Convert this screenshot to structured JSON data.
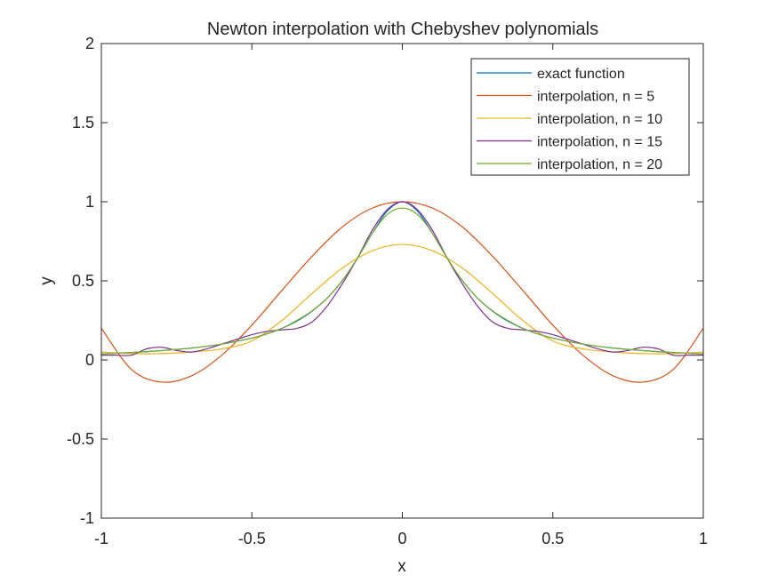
{
  "chart_data": {
    "type": "line",
    "title": "Newton interpolation with Chebyshev polynomials",
    "xlabel": "x",
    "ylabel": "y",
    "xlim": [
      -1,
      1
    ],
    "ylim": [
      -1,
      2
    ],
    "xticks": [
      -1,
      -0.5,
      0,
      0.5,
      1
    ],
    "xtick_labels": [
      "-1",
      "-0.5",
      "0",
      "0.5",
      "1"
    ],
    "yticks": [
      -1,
      -0.5,
      0,
      0.5,
      1,
      1.5,
      2
    ],
    "ytick_labels": [
      "-1",
      "-0.5",
      "0",
      "0.5",
      "1",
      "1.5",
      "2"
    ],
    "grid": false,
    "legend_position": "top-right",
    "series": [
      {
        "name": "exact function",
        "color": "#0072BD",
        "x": [
          0,
          0.05,
          0.1,
          0.15,
          0.2,
          0.25,
          0.3,
          0.35,
          0.4,
          0.45,
          0.5,
          0.6,
          0.7,
          0.8,
          0.9,
          1.0
        ],
        "y": [
          1.0,
          0.941,
          0.8,
          0.64,
          0.5,
          0.39,
          0.308,
          0.246,
          0.2,
          0.165,
          0.138,
          0.1,
          0.075,
          0.059,
          0.047,
          0.038
        ]
      },
      {
        "name": "interpolation, n = 5",
        "color": "#D95319",
        "x": [
          0,
          0.1,
          0.2,
          0.3,
          0.4,
          0.5,
          0.6,
          0.7,
          0.8,
          0.9,
          1.0
        ],
        "y": [
          1.0,
          0.96,
          0.84,
          0.655,
          0.44,
          0.22,
          0.03,
          -0.1,
          -0.14,
          -0.06,
          0.2
        ]
      },
      {
        "name": "interpolation, n = 10",
        "color": "#EDB120",
        "x": [
          0,
          0.1,
          0.2,
          0.3,
          0.4,
          0.5,
          0.6,
          0.7,
          0.8,
          0.9,
          1.0
        ],
        "y": [
          0.73,
          0.69,
          0.58,
          0.42,
          0.25,
          0.12,
          0.07,
          0.05,
          0.04,
          0.04,
          0.05
        ]
      },
      {
        "name": "interpolation, n = 15",
        "color": "#7E2F8E",
        "x": [
          0,
          0.05,
          0.1,
          0.15,
          0.2,
          0.25,
          0.3,
          0.35,
          0.4,
          0.45,
          0.5,
          0.55,
          0.6,
          0.65,
          0.7,
          0.75,
          0.8,
          0.85,
          0.9,
          0.95,
          1.0
        ],
        "y": [
          1.0,
          0.95,
          0.82,
          0.64,
          0.48,
          0.34,
          0.24,
          0.2,
          0.19,
          0.18,
          0.16,
          0.13,
          0.1,
          0.07,
          0.05,
          0.06,
          0.08,
          0.07,
          0.03,
          0.03,
          0.03
        ]
      },
      {
        "name": "interpolation, n = 20",
        "color": "#77AC30",
        "x": [
          0,
          0.05,
          0.1,
          0.15,
          0.2,
          0.25,
          0.3,
          0.35,
          0.4,
          0.45,
          0.5,
          0.6,
          0.7,
          0.8,
          0.9,
          1.0
        ],
        "y": [
          0.96,
          0.92,
          0.8,
          0.64,
          0.5,
          0.39,
          0.31,
          0.25,
          0.2,
          0.165,
          0.138,
          0.1,
          0.075,
          0.059,
          0.047,
          0.038
        ]
      }
    ]
  }
}
